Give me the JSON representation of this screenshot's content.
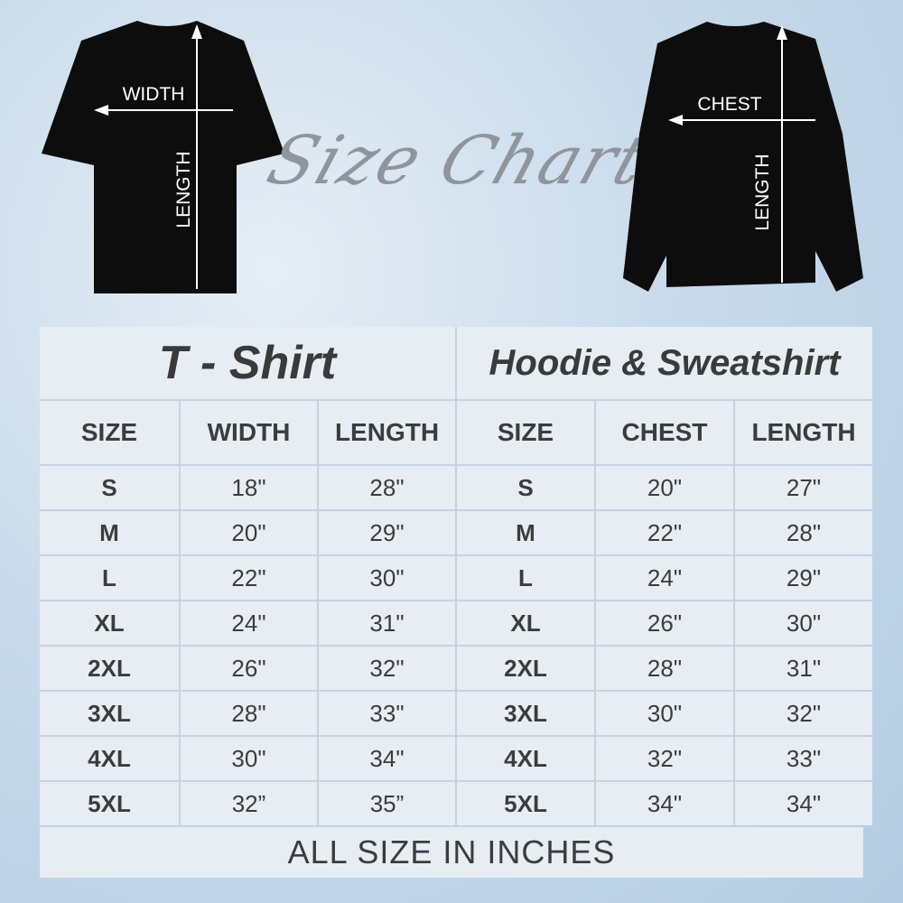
{
  "title": "Size Chart",
  "tshirt_labels": {
    "width": "WIDTH",
    "length": "LENGTH"
  },
  "sweat_labels": {
    "chest": "CHEST",
    "length": "LENGTH"
  },
  "table": {
    "section_left": "T - Shirt",
    "section_right": "Hoodie & Sweatshirt",
    "headers_left": [
      "SIZE",
      "WIDTH",
      "LENGTH"
    ],
    "headers_right": [
      "SIZE",
      "CHEST",
      "LENGTH"
    ],
    "rows": [
      [
        "S",
        "18\"",
        "28\"",
        "S",
        "20\"",
        "27\""
      ],
      [
        "M",
        "20\"",
        "29\"",
        "M",
        "22\"",
        "28\""
      ],
      [
        "L",
        "22\"",
        "30\"",
        "L",
        "24\"",
        "29\""
      ],
      [
        "XL",
        "24\"",
        "31\"",
        "XL",
        "26\"",
        "30\""
      ],
      [
        "2XL",
        "26\"",
        "32\"",
        "2XL",
        "28\"",
        "31\""
      ],
      [
        "3XL",
        "28\"",
        "33\"",
        "3XL",
        "30\"",
        "32\""
      ],
      [
        "4XL",
        "30\"",
        "34\"",
        "4XL",
        "32\"",
        "33\""
      ],
      [
        "5XL",
        "32”",
        "35”",
        "5XL",
        "34\"",
        "34\""
      ]
    ],
    "footer": "ALL SIZE IN INCHES"
  }
}
